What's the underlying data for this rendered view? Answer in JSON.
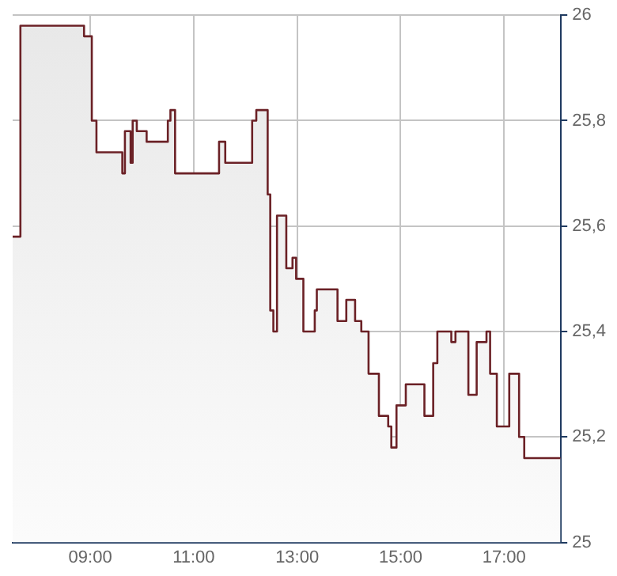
{
  "chart_data": {
    "type": "area",
    "x": [
      7.5,
      7.65,
      7.65,
      8.88,
      8.88,
      9.03,
      9.03,
      9.12,
      9.12,
      9.62,
      9.62,
      9.67,
      9.67,
      9.78,
      9.78,
      9.82,
      9.82,
      9.9,
      9.9,
      10.09,
      10.09,
      10.5,
      10.5,
      10.55,
      10.55,
      10.64,
      10.64,
      11.49,
      11.49,
      11.61,
      11.61,
      12.13,
      12.13,
      12.21,
      12.21,
      12.43,
      12.43,
      12.48,
      12.48,
      12.54,
      12.54,
      12.61,
      12.61,
      12.79,
      12.79,
      12.91,
      12.91,
      12.98,
      12.98,
      13.12,
      13.12,
      13.34,
      13.34,
      13.38,
      13.38,
      13.78,
      13.78,
      13.95,
      13.95,
      14.12,
      14.12,
      14.24,
      14.24,
      14.38,
      14.38,
      14.58,
      14.58,
      14.76,
      14.76,
      14.82,
      14.82,
      14.92,
      14.92,
      15.1,
      15.1,
      15.46,
      15.46,
      15.63,
      15.63,
      15.71,
      15.71,
      15.98,
      15.98,
      16.06,
      16.06,
      16.31,
      16.31,
      16.47,
      16.47,
      16.66,
      16.66,
      16.73,
      16.73,
      16.86,
      16.86,
      17.1,
      17.1,
      17.29,
      17.29,
      17.39,
      17.39,
      18.09
    ],
    "series": [
      {
        "color": "#6b2126",
        "values": [
          25.58,
          25.58,
          25.98,
          25.98,
          25.96,
          25.96,
          25.8,
          25.8,
          25.74,
          25.74,
          25.7,
          25.7,
          25.78,
          25.78,
          25.72,
          25.72,
          25.8,
          25.8,
          25.78,
          25.78,
          25.76,
          25.76,
          25.8,
          25.8,
          25.82,
          25.82,
          25.7,
          25.7,
          25.76,
          25.76,
          25.72,
          25.72,
          25.8,
          25.8,
          25.82,
          25.82,
          25.66,
          25.66,
          25.44,
          25.44,
          25.4,
          25.4,
          25.62,
          25.62,
          25.52,
          25.52,
          25.54,
          25.54,
          25.5,
          25.5,
          25.4,
          25.4,
          25.44,
          25.44,
          25.48,
          25.48,
          25.42,
          25.42,
          25.46,
          25.46,
          25.42,
          25.42,
          25.4,
          25.4,
          25.32,
          25.32,
          25.24,
          25.24,
          25.22,
          25.22,
          25.18,
          25.18,
          25.26,
          25.26,
          25.3,
          25.3,
          25.24,
          25.24,
          25.34,
          25.34,
          25.4,
          25.4,
          25.38,
          25.38,
          25.4,
          25.4,
          25.28,
          25.28,
          25.38,
          25.38,
          25.4,
          25.4,
          25.32,
          25.32,
          25.22,
          25.22,
          25.32,
          25.32,
          25.2,
          25.2,
          25.16,
          25.16
        ]
      }
    ],
    "xlim": [
      7.5,
      18.1
    ],
    "xticks": [
      {
        "value": 9,
        "label": "09:00"
      },
      {
        "value": 11,
        "label": "11:00"
      },
      {
        "value": 13,
        "label": "13:00"
      },
      {
        "value": 15,
        "label": "15:00"
      },
      {
        "value": 17,
        "label": "17:00"
      }
    ],
    "ylim": [
      25,
      26
    ],
    "yticks": [
      {
        "value": 25,
        "label": "25"
      },
      {
        "value": 25.2,
        "label": "25,2"
      },
      {
        "value": 25.4,
        "label": "25,4"
      },
      {
        "value": 25.6,
        "label": "25,6"
      },
      {
        "value": 25.8,
        "label": "25,8"
      },
      {
        "value": 26,
        "label": "26"
      }
    ],
    "grid": true,
    "legend": false
  }
}
